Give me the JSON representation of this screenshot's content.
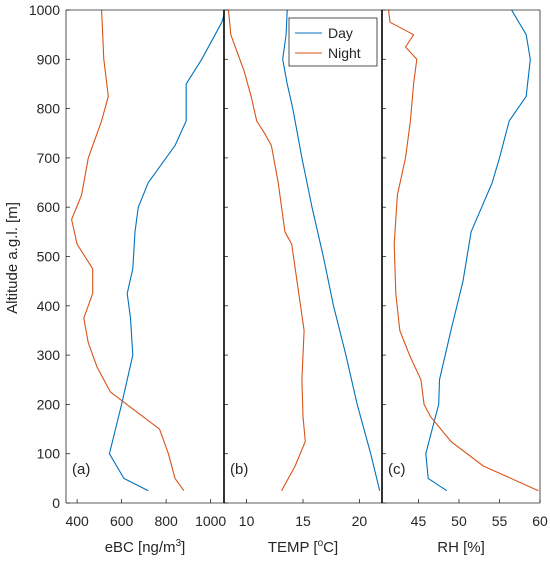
{
  "shared": {
    "ylabel": "Altitude a.g.l. [m]",
    "ylim": [
      0,
      1000
    ],
    "yticks": [
      0,
      100,
      200,
      300,
      400,
      500,
      600,
      700,
      800,
      900,
      1000
    ],
    "legend": {
      "placement": "top-right of panel (b)",
      "entries": [
        {
          "name": "Day",
          "color": "#0072BD"
        },
        {
          "name": "Night",
          "color": "#D95319"
        }
      ]
    }
  },
  "chart_data": [
    {
      "type": "line",
      "panel_label": "(a)",
      "xlabel_main": "eBC [ng/m",
      "xlabel_sup": "3",
      "xlabel_tail": "]",
      "xlim": [
        350,
        1060
      ],
      "xticks": [
        400,
        600,
        800,
        1000
      ],
      "series": [
        {
          "name": "Day",
          "color": "#0072BD",
          "points": [
            [
              720,
              25
            ],
            [
              610,
              50
            ],
            [
              545,
              100
            ],
            [
              600,
              200
            ],
            [
              650,
              300
            ],
            [
              640,
              375
            ],
            [
              625,
              425
            ],
            [
              650,
              475
            ],
            [
              660,
              550
            ],
            [
              675,
              600
            ],
            [
              720,
              650
            ],
            [
              840,
              725
            ],
            [
              890,
              775
            ],
            [
              890,
              850
            ],
            [
              960,
              900
            ],
            [
              1050,
              975
            ],
            [
              1060,
              990
            ]
          ]
        },
        {
          "name": "Night",
          "color": "#D95319",
          "points": [
            [
              880,
              25
            ],
            [
              840,
              50
            ],
            [
              810,
              100
            ],
            [
              770,
              150
            ],
            [
              550,
              225
            ],
            [
              490,
              275
            ],
            [
              450,
              325
            ],
            [
              430,
              375
            ],
            [
              470,
              425
            ],
            [
              470,
              475
            ],
            [
              400,
              525
            ],
            [
              375,
              575
            ],
            [
              420,
              625
            ],
            [
              450,
              700
            ],
            [
              510,
              775
            ],
            [
              540,
              825
            ],
            [
              520,
              900
            ],
            [
              510,
              1000
            ]
          ]
        }
      ]
    },
    {
      "type": "line",
      "panel_label": "(b)",
      "xlabel_main": "TEMP [",
      "xlabel_sup": "o",
      "xlabel_tail": "C]",
      "xlim": [
        8,
        22
      ],
      "xticks": [
        10,
        15,
        20
      ],
      "series": [
        {
          "name": "Day",
          "color": "#0072BD",
          "points": [
            [
              21.8,
              25
            ],
            [
              21.0,
              100
            ],
            [
              19.8,
              200
            ],
            [
              18.8,
              300
            ],
            [
              17.7,
              400
            ],
            [
              16.8,
              500
            ],
            [
              15.8,
              600
            ],
            [
              14.9,
              700
            ],
            [
              14.1,
              800
            ],
            [
              13.6,
              850
            ],
            [
              13.2,
              900
            ],
            [
              13.5,
              950
            ],
            [
              13.6,
              1000
            ]
          ]
        },
        {
          "name": "Night",
          "color": "#D95319",
          "points": [
            [
              13.1,
              25
            ],
            [
              14.3,
              75
            ],
            [
              15.2,
              125
            ],
            [
              15.0,
              175
            ],
            [
              14.9,
              250
            ],
            [
              15.1,
              350
            ],
            [
              14.0,
              525
            ],
            [
              13.4,
              550
            ],
            [
              12.8,
              650
            ],
            [
              12.2,
              725
            ],
            [
              11.6,
              750
            ],
            [
              10.9,
              775
            ],
            [
              10.4,
              825
            ],
            [
              9.8,
              875
            ],
            [
              9.0,
              925
            ],
            [
              8.6,
              950
            ],
            [
              8.4,
              1000
            ]
          ]
        }
      ]
    },
    {
      "type": "line",
      "panel_label": "(c)",
      "xlabel_main": "RH [%]",
      "xlabel_sup": "",
      "xlabel_tail": "",
      "xlim": [
        40.5,
        60
      ],
      "xticks": [
        45,
        50,
        55,
        60
      ],
      "series": [
        {
          "name": "Day",
          "color": "#0072BD",
          "points": [
            [
              48.5,
              25
            ],
            [
              46.2,
              50
            ],
            [
              45.9,
              100
            ],
            [
              46.7,
              150
            ],
            [
              47.5,
              200
            ],
            [
              47.6,
              250
            ],
            [
              49.0,
              350
            ],
            [
              50.5,
              450
            ],
            [
              51.5,
              550
            ],
            [
              52.8,
              600
            ],
            [
              54.1,
              650
            ],
            [
              55.0,
              700
            ],
            [
              56.2,
              775
            ],
            [
              58.3,
              825
            ],
            [
              58.8,
              900
            ],
            [
              58.3,
              950
            ],
            [
              56.5,
              1000
            ]
          ]
        },
        {
          "name": "Night",
          "color": "#D95319",
          "points": [
            [
              59.8,
              25
            ],
            [
              53.0,
              75
            ],
            [
              49.0,
              125
            ],
            [
              46.5,
              175
            ],
            [
              45.7,
              200
            ],
            [
              45.3,
              250
            ],
            [
              43.9,
              300
            ],
            [
              42.7,
              350
            ],
            [
              42.2,
              425
            ],
            [
              42.0,
              525
            ],
            [
              42.4,
              625
            ],
            [
              43.4,
              700
            ],
            [
              44.0,
              775
            ],
            [
              44.4,
              850
            ],
            [
              44.8,
              900
            ],
            [
              43.4,
              925
            ],
            [
              44.4,
              950
            ],
            [
              41.5,
              975
            ],
            [
              41.3,
              1000
            ]
          ]
        }
      ]
    }
  ]
}
